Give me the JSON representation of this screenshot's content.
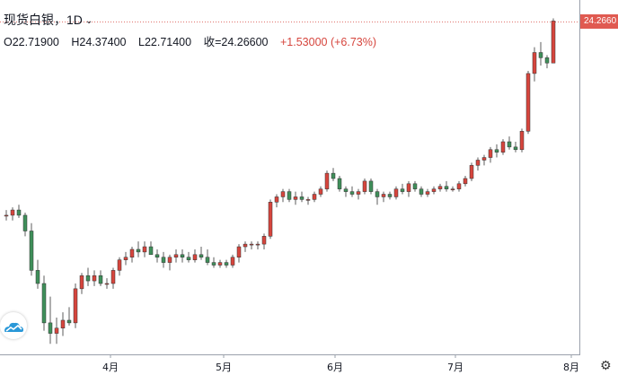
{
  "header": {
    "title": "现货白银，1D",
    "ohlc": {
      "open": "O22.71900",
      "high": "H24.37400",
      "low": "L22.71400",
      "close": "收=24.26600",
      "change": "+1.53000 (+6.73%)"
    }
  },
  "price_tag": "24.2660",
  "colors": {
    "up": "#d6453d",
    "down": "#3f8f5a",
    "tag": "#e05a51"
  },
  "chart_data": {
    "type": "candlestick",
    "interval": "1D",
    "last_close": 24.266,
    "x_labels": [
      "4月",
      "5月",
      "6月",
      "7月",
      "8月"
    ],
    "ylim": [
      11.6,
      25.1
    ],
    "candles": [
      [
        16.9,
        17.1,
        16.7,
        16.9
      ],
      [
        16.9,
        17.2,
        16.7,
        17.1
      ],
      [
        17.1,
        17.3,
        16.8,
        16.9
      ],
      [
        16.9,
        17.0,
        16.1,
        16.3
      ],
      [
        16.3,
        16.6,
        14.6,
        14.8
      ],
      [
        14.8,
        15.2,
        14.1,
        14.3
      ],
      [
        14.3,
        14.6,
        12.5,
        12.8
      ],
      [
        12.8,
        13.8,
        12.0,
        12.4
      ],
      [
        12.4,
        13.0,
        12.0,
        12.6
      ],
      [
        12.6,
        13.2,
        12.3,
        12.9
      ],
      [
        12.9,
        13.4,
        12.7,
        12.8
      ],
      [
        12.8,
        14.3,
        12.6,
        14.1
      ],
      [
        14.1,
        14.7,
        13.9,
        14.6
      ],
      [
        14.6,
        14.9,
        14.2,
        14.4
      ],
      [
        14.4,
        14.8,
        14.2,
        14.6
      ],
      [
        14.6,
        14.8,
        14.2,
        14.3
      ],
      [
        14.3,
        14.5,
        14.1,
        14.3
      ],
      [
        14.3,
        14.9,
        14.1,
        14.8
      ],
      [
        14.8,
        15.3,
        14.6,
        15.2
      ],
      [
        15.2,
        15.5,
        15.0,
        15.3
      ],
      [
        15.3,
        15.7,
        15.1,
        15.6
      ],
      [
        15.6,
        15.9,
        15.3,
        15.5
      ],
      [
        15.5,
        15.9,
        15.3,
        15.7
      ],
      [
        15.7,
        15.9,
        15.4,
        15.4
      ],
      [
        15.4,
        15.6,
        15.1,
        15.3
      ],
      [
        15.3,
        15.5,
        14.9,
        15.1
      ],
      [
        15.1,
        15.4,
        14.8,
        15.3
      ],
      [
        15.3,
        15.6,
        15.1,
        15.4
      ],
      [
        15.4,
        15.6,
        15.1,
        15.3
      ],
      [
        15.3,
        15.5,
        15.1,
        15.2
      ],
      [
        15.2,
        15.6,
        15.1,
        15.4
      ],
      [
        15.4,
        15.7,
        15.2,
        15.3
      ],
      [
        15.3,
        15.6,
        15.0,
        15.1
      ],
      [
        15.1,
        15.3,
        14.9,
        15.0
      ],
      [
        15.0,
        15.2,
        14.9,
        15.1
      ],
      [
        15.1,
        15.2,
        14.9,
        15.0
      ],
      [
        15.0,
        15.4,
        14.9,
        15.3
      ],
      [
        15.3,
        15.8,
        15.1,
        15.7
      ],
      [
        15.7,
        15.9,
        15.5,
        15.8
      ],
      [
        15.8,
        15.9,
        15.6,
        15.8
      ],
      [
        15.8,
        15.9,
        15.6,
        15.8
      ],
      [
        15.8,
        16.2,
        15.6,
        16.1
      ],
      [
        16.1,
        17.5,
        16.0,
        17.4
      ],
      [
        17.4,
        17.7,
        17.2,
        17.6
      ],
      [
        17.6,
        17.9,
        17.4,
        17.8
      ],
      [
        17.8,
        17.9,
        17.4,
        17.5
      ],
      [
        17.5,
        17.8,
        17.3,
        17.6
      ],
      [
        17.6,
        17.8,
        17.4,
        17.5
      ],
      [
        17.5,
        17.6,
        17.3,
        17.5
      ],
      [
        17.5,
        17.8,
        17.4,
        17.7
      ],
      [
        17.7,
        18.0,
        17.6,
        17.9
      ],
      [
        17.9,
        18.6,
        17.8,
        18.5
      ],
      [
        18.5,
        18.7,
        18.2,
        18.3
      ],
      [
        18.3,
        18.4,
        17.8,
        17.9
      ],
      [
        17.9,
        18.0,
        17.6,
        17.8
      ],
      [
        17.8,
        18.0,
        17.6,
        17.7
      ],
      [
        17.7,
        17.9,
        17.5,
        17.8
      ],
      [
        17.8,
        18.3,
        17.7,
        18.2
      ],
      [
        18.2,
        18.3,
        17.7,
        17.8
      ],
      [
        17.8,
        17.9,
        17.3,
        17.6
      ],
      [
        17.6,
        17.8,
        17.4,
        17.7
      ],
      [
        17.7,
        17.8,
        17.5,
        17.6
      ],
      [
        17.6,
        18.0,
        17.5,
        17.9
      ],
      [
        17.9,
        18.1,
        17.7,
        17.8
      ],
      [
        17.8,
        18.2,
        17.6,
        18.1
      ],
      [
        18.1,
        18.2,
        17.8,
        17.9
      ],
      [
        17.9,
        18.0,
        17.6,
        17.7
      ],
      [
        17.7,
        17.9,
        17.6,
        17.8
      ],
      [
        17.8,
        18.0,
        17.7,
        17.9
      ],
      [
        17.9,
        18.1,
        17.8,
        18.0
      ],
      [
        18.0,
        18.2,
        17.8,
        17.9
      ],
      [
        17.9,
        18.0,
        17.8,
        17.9
      ],
      [
        17.9,
        18.2,
        17.8,
        18.1
      ],
      [
        18.1,
        18.4,
        18.0,
        18.3
      ],
      [
        18.3,
        18.9,
        18.2,
        18.8
      ],
      [
        18.8,
        19.1,
        18.6,
        19.0
      ],
      [
        19.0,
        19.2,
        18.8,
        19.1
      ],
      [
        19.1,
        19.5,
        18.9,
        19.4
      ],
      [
        19.4,
        19.6,
        19.1,
        19.3
      ],
      [
        19.3,
        19.8,
        19.2,
        19.7
      ],
      [
        19.7,
        19.9,
        19.4,
        19.5
      ],
      [
        19.5,
        19.7,
        19.3,
        19.4
      ],
      [
        19.4,
        20.2,
        19.3,
        20.1
      ],
      [
        20.1,
        22.4,
        20.0,
        22.3
      ],
      [
        22.3,
        23.3,
        22.0,
        23.1
      ],
      [
        23.1,
        23.5,
        22.6,
        22.9
      ],
      [
        22.9,
        23.0,
        22.5,
        22.7
      ],
      [
        22.7,
        24.4,
        22.7,
        24.3
      ]
    ]
  }
}
